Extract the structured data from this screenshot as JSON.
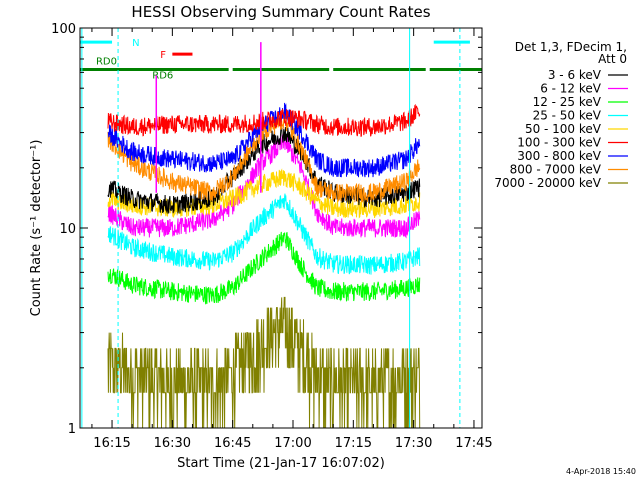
{
  "chart_data": {
    "type": "line",
    "title": "HESSI Observing Summary Count Rates",
    "xlabel": "Start Time (21-Jan-17 16:07:02)",
    "ylabel": "Count Rate (s⁻¹ detector⁻¹)",
    "yscale": "log",
    "ylim": [
      1,
      100
    ],
    "xlim": [
      "16:07:02",
      "17:47:00"
    ],
    "grid": false,
    "legend_position": "right",
    "legend_header": [
      "Det 1,3, FDecim 1,",
      "Att 0"
    ],
    "yticks": [
      {
        "v": 1,
        "label": "1"
      },
      {
        "v": 10,
        "label": "10"
      },
      {
        "v": 100,
        "label": "100"
      }
    ],
    "xticks": [
      {
        "t": "16:15",
        "label": "16:15"
      },
      {
        "t": "16:30",
        "label": "16:30"
      },
      {
        "t": "16:45",
        "label": "16:45"
      },
      {
        "t": "17:00",
        "label": "17:00"
      },
      {
        "t": "17:15",
        "label": "17:15"
      },
      {
        "t": "17:30",
        "label": "17:30"
      },
      {
        "t": "17:45",
        "label": "17:45"
      }
    ],
    "data_start": "16:14:00",
    "data_end": "17:31:30",
    "series": [
      {
        "name": "3 - 6 keV",
        "color": "#000000",
        "x": [
          "16:14",
          "16:20",
          "16:30",
          "16:40",
          "16:45",
          "16:52",
          "16:58",
          "17:02",
          "17:06",
          "17:10",
          "17:20",
          "17:28",
          "17:31"
        ],
        "y": [
          16,
          14,
          13,
          14,
          18,
          26,
          30,
          24,
          17,
          15,
          14,
          15,
          16
        ]
      },
      {
        "name": "6 - 12 keV",
        "color": "#ff00ff",
        "x": [
          "16:14",
          "16:20",
          "16:30",
          "16:40",
          "16:45",
          "16:52",
          "16:58",
          "17:02",
          "17:06",
          "17:10",
          "17:20",
          "17:28",
          "17:31"
        ],
        "y": [
          12,
          10,
          10,
          11,
          13,
          21,
          27,
          20,
          12,
          10,
          10,
          10,
          11
        ]
      },
      {
        "name": "12 - 25 keV",
        "color": "#00ff00",
        "x": [
          "16:14",
          "16:20",
          "16:30",
          "16:40",
          "16:45",
          "16:52",
          "16:58",
          "17:02",
          "17:06",
          "17:10",
          "17:20",
          "17:28",
          "17:31"
        ],
        "y": [
          6,
          5.2,
          4.8,
          4.6,
          5.0,
          7.0,
          9.0,
          6.5,
          5.0,
          4.8,
          4.8,
          5.0,
          5.2
        ]
      },
      {
        "name": "25 - 50 keV",
        "color": "#00ffff",
        "x": [
          "16:14",
          "16:20",
          "16:30",
          "16:40",
          "16:45",
          "16:52",
          "16:58",
          "17:02",
          "17:06",
          "17:10",
          "17:20",
          "17:28",
          "17:31"
        ],
        "y": [
          9.5,
          8.0,
          7.2,
          6.8,
          7.5,
          11,
          14,
          10,
          7.2,
          6.6,
          6.5,
          6.8,
          7.2
        ]
      },
      {
        "name": "50 - 100 keV",
        "color": "#ffd700",
        "x": [
          "16:14",
          "16:20",
          "16:30",
          "16:40",
          "16:45",
          "16:52",
          "16:58",
          "17:02",
          "17:06",
          "17:10",
          "17:20",
          "17:28",
          "17:31"
        ],
        "y": [
          14,
          13,
          12.5,
          13,
          14,
          16.5,
          18,
          16,
          13.5,
          12.5,
          12.5,
          13,
          13.5
        ]
      },
      {
        "name": "100 - 300 keV",
        "color": "#ff0000",
        "x": [
          "16:14",
          "16:20",
          "16:30",
          "16:40",
          "16:45",
          "16:52",
          "16:58",
          "17:02",
          "17:06",
          "17:10",
          "17:20",
          "17:28",
          "17:31"
        ],
        "y": [
          34,
          32,
          33,
          33,
          33,
          34,
          36,
          35,
          33,
          32,
          32,
          34,
          38
        ]
      },
      {
        "name": "300 - 800 keV",
        "color": "#0000ff",
        "x": [
          "16:14",
          "16:20",
          "16:30",
          "16:40",
          "16:45",
          "16:52",
          "16:58",
          "17:02",
          "17:06",
          "17:10",
          "17:20",
          "17:28",
          "17:31"
        ],
        "y": [
          30,
          24,
          22,
          21,
          22,
          32,
          38,
          30,
          22,
          20,
          20,
          22,
          26
        ]
      },
      {
        "name": "800 - 7000 keV",
        "color": "#ff8c00",
        "x": [
          "16:14",
          "16:20",
          "16:30",
          "16:40",
          "16:45",
          "16:52",
          "16:58",
          "17:02",
          "17:06",
          "17:10",
          "17:20",
          "17:28",
          "17:31"
        ],
        "y": [
          28,
          21,
          17,
          15,
          18,
          30,
          35,
          25,
          16,
          15,
          15,
          17,
          20
        ]
      },
      {
        "name": "7000 - 20000 keV",
        "color": "#808000",
        "x": [
          "16:14",
          "16:20",
          "16:30",
          "16:40",
          "16:45",
          "16:52",
          "16:58",
          "17:02",
          "17:06",
          "17:10",
          "17:20",
          "17:28",
          "17:31"
        ],
        "y": [
          2.0,
          1.8,
          1.6,
          1.6,
          1.8,
          2.6,
          3.2,
          2.4,
          1.7,
          1.6,
          1.6,
          1.7,
          1.8
        ]
      }
    ],
    "spikes": [
      {
        "t": "16:26",
        "y": 58,
        "color": "#ff00ff"
      },
      {
        "t": "16:52",
        "y": 85,
        "color": "#ff00ff"
      }
    ],
    "state_bars": [
      {
        "label": "N",
        "color": "#00ffff",
        "y": 85,
        "segments": [
          [
            "16:07:02",
            "16:15"
          ],
          [
            "17:35",
            "17:44"
          ]
        ]
      },
      {
        "label": "F",
        "color": "#ff0000",
        "y": 74,
        "segments": [
          [
            "16:30",
            "16:35"
          ]
        ]
      },
      {
        "label": "RD0",
        "color": "#008000",
        "y": 62,
        "segments": [
          [
            "16:07:02",
            "16:44"
          ],
          [
            "16:45",
            "17:09"
          ],
          [
            "17:10",
            "17:33"
          ],
          [
            "17:34",
            "17:47"
          ]
        ]
      },
      {
        "label": "RD6",
        "color": "#008000",
        "y": 0,
        "segments": []
      }
    ],
    "vlines": [
      {
        "t": "16:07:30",
        "color": "#00ffff",
        "style": "solid"
      },
      {
        "t": "16:16:30",
        "color": "#00ffff",
        "style": "dashed"
      },
      {
        "t": "17:29:00",
        "color": "#00ffff",
        "style": "solid"
      },
      {
        "t": "17:41:30",
        "color": "#00ffff",
        "style": "dashed"
      }
    ],
    "timestamp": "4-Apr-2018 15:40"
  }
}
